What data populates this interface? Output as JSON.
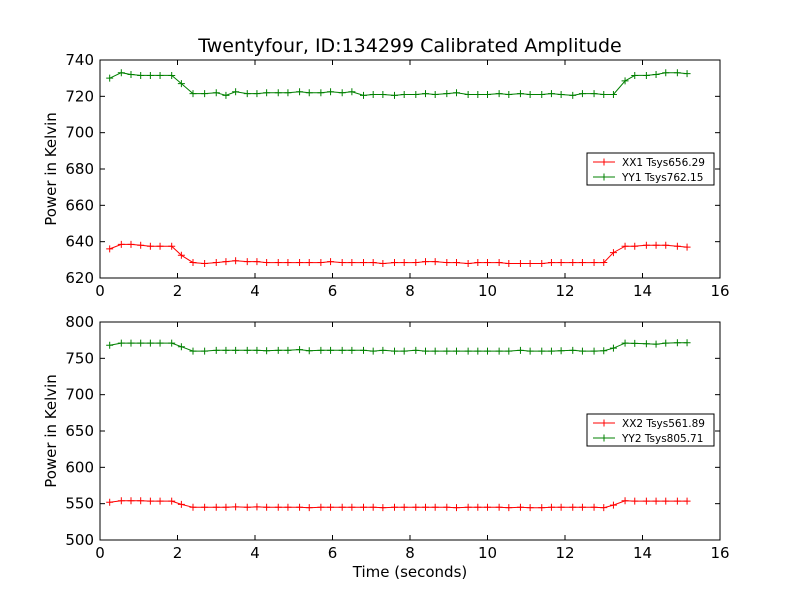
{
  "title": "Twentyfour, ID:134299 Calibrated Amplitude",
  "chart_data": [
    {
      "type": "line",
      "title": "Twentyfour, ID:134299 Calibrated Amplitude",
      "xlabel": "",
      "ylabel": "Power in Kelvin",
      "xlim": [
        0,
        16
      ],
      "ylim": [
        620,
        740
      ],
      "xticks": [
        0,
        2,
        4,
        6,
        8,
        10,
        12,
        14,
        16
      ],
      "yticks": [
        620,
        640,
        660,
        680,
        700,
        720,
        740
      ],
      "grid": false,
      "legend_position": "right",
      "marker": "+",
      "x": [
        0.25,
        0.55,
        0.8,
        1.05,
        1.3,
        1.55,
        1.85,
        2.1,
        2.4,
        2.7,
        3.0,
        3.25,
        3.5,
        3.8,
        4.05,
        4.3,
        4.6,
        4.85,
        5.15,
        5.4,
        5.7,
        5.95,
        6.25,
        6.5,
        6.8,
        7.05,
        7.3,
        7.6,
        7.85,
        8.15,
        8.4,
        8.65,
        8.95,
        9.2,
        9.5,
        9.75,
        10.0,
        10.3,
        10.55,
        10.85,
        11.1,
        11.4,
        11.65,
        11.9,
        12.2,
        12.45,
        12.75,
        13.0,
        13.25,
        13.55,
        13.8,
        14.1,
        14.35,
        14.6,
        14.9,
        15.15
      ],
      "series": [
        {
          "name": "XX1 Tsys656.29",
          "color": "#ff0000",
          "values": [
            636,
            638.5,
            638.5,
            638,
            637.5,
            637.5,
            637.5,
            632.5,
            628.5,
            628,
            628.5,
            629,
            629.5,
            629,
            629,
            628.5,
            628.5,
            628.5,
            628.5,
            628.5,
            628.5,
            629,
            628.5,
            628.5,
            628.5,
            628.5,
            628,
            628.5,
            628.5,
            628.5,
            629,
            629,
            628.5,
            628.5,
            628,
            628.5,
            628.5,
            628.5,
            628,
            628,
            628,
            628,
            628.5,
            628.5,
            628.5,
            628.5,
            628.5,
            628.5,
            634,
            637.5,
            637.5,
            638,
            638,
            638,
            637.5,
            637
          ]
        },
        {
          "name": "YY1 Tsys762.15",
          "color": "#008000",
          "values": [
            730,
            733,
            732,
            731.5,
            731.5,
            731.5,
            731.5,
            727,
            721.5,
            721.5,
            722,
            720.5,
            722.5,
            721.5,
            721.5,
            722,
            722,
            722,
            722.5,
            722,
            722,
            722.5,
            722,
            722.5,
            720.5,
            721,
            721,
            720.5,
            721,
            721,
            721.5,
            721,
            721.5,
            722,
            721,
            721,
            721,
            721.5,
            721,
            721.5,
            721,
            721,
            721.5,
            721,
            720.5,
            721.5,
            721.5,
            721,
            721,
            728.5,
            731.5,
            731.5,
            732,
            733,
            733,
            732.5
          ]
        }
      ]
    },
    {
      "type": "line",
      "title": "",
      "xlabel": "Time (seconds)",
      "ylabel": "Power in Kelvin",
      "xlim": [
        0,
        16
      ],
      "ylim": [
        500,
        800
      ],
      "xticks": [
        0,
        2,
        4,
        6,
        8,
        10,
        12,
        14,
        16
      ],
      "yticks": [
        500,
        550,
        600,
        650,
        700,
        750,
        800
      ],
      "grid": false,
      "legend_position": "right",
      "marker": "+",
      "x": [
        0.25,
        0.55,
        0.8,
        1.05,
        1.3,
        1.55,
        1.85,
        2.1,
        2.4,
        2.7,
        3.0,
        3.25,
        3.5,
        3.8,
        4.05,
        4.3,
        4.6,
        4.85,
        5.15,
        5.4,
        5.7,
        5.95,
        6.25,
        6.5,
        6.8,
        7.05,
        7.3,
        7.6,
        7.85,
        8.15,
        8.4,
        8.65,
        8.95,
        9.2,
        9.5,
        9.75,
        10.0,
        10.3,
        10.55,
        10.85,
        11.1,
        11.4,
        11.65,
        11.9,
        12.2,
        12.45,
        12.75,
        13.0,
        13.25,
        13.55,
        13.8,
        14.1,
        14.35,
        14.6,
        14.9,
        15.15
      ],
      "series": [
        {
          "name": "XX2 Tsys561.89",
          "color": "#ff0000",
          "values": [
            552,
            554,
            554,
            554,
            553.5,
            553.5,
            553.5,
            549,
            545,
            545,
            545,
            545,
            545.5,
            545,
            545.5,
            545,
            545,
            545,
            545,
            544.5,
            545,
            545,
            545,
            545,
            545,
            545,
            544.5,
            545,
            545,
            545,
            545,
            545,
            545,
            544.5,
            545,
            545,
            545,
            545,
            544.5,
            545,
            544.5,
            544.5,
            545,
            545,
            545,
            545,
            545,
            544.5,
            548,
            554,
            553.5,
            553.5,
            553.5,
            553.5,
            553.5,
            553.5
          ]
        },
        {
          "name": "YY2 Tsys805.71",
          "color": "#008000",
          "values": [
            768,
            771,
            771,
            771,
            771,
            771,
            771,
            766,
            760,
            760,
            761,
            761,
            761,
            761,
            761,
            760.5,
            761,
            761,
            762,
            760.5,
            761,
            761,
            761,
            761,
            761,
            760,
            761,
            760,
            760,
            761,
            760,
            760,
            760,
            760,
            760,
            760,
            760,
            760,
            760,
            761,
            760,
            760,
            760,
            760.5,
            761,
            760,
            760,
            760.5,
            764,
            771,
            770.5,
            770,
            769.5,
            771,
            771.5,
            771.5
          ]
        }
      ]
    }
  ]
}
